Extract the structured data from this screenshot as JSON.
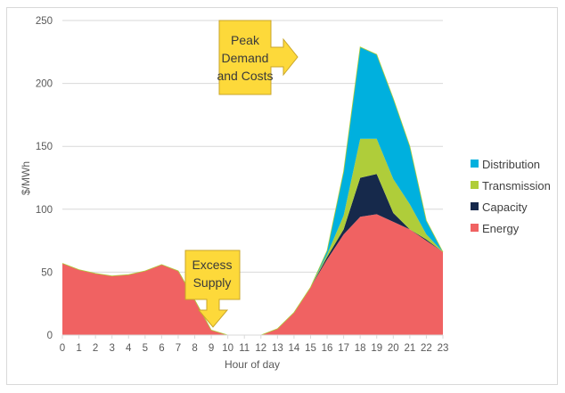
{
  "chart_data": {
    "type": "area",
    "stacked": true,
    "title": "",
    "xlabel": "Hour of day",
    "ylabel": "$/MWh",
    "ylim": [
      0,
      250
    ],
    "yticks": [
      0,
      50,
      100,
      150,
      200,
      250
    ],
    "grid": true,
    "legend_position": "right",
    "categories": [
      "0",
      "1",
      "2",
      "3",
      "4",
      "5",
      "6",
      "7",
      "8",
      "9",
      "10",
      "11",
      "12",
      "13",
      "14",
      "15",
      "16",
      "17",
      "18",
      "19",
      "20",
      "21",
      "22",
      "23"
    ],
    "series": [
      {
        "name": "Energy",
        "color": "#f06262",
        "values": [
          57,
          52,
          49,
          47,
          48,
          51,
          56,
          51,
          28,
          4,
          0,
          0,
          0,
          5,
          18,
          38,
          60,
          80,
          94,
          96,
          90,
          84,
          75,
          66
        ]
      },
      {
        "name": "Capacity",
        "color": "#16294b",
        "values": [
          0,
          0,
          0,
          0,
          0,
          0,
          0,
          0,
          0,
          0,
          0,
          0,
          0,
          0,
          0,
          0,
          2,
          4,
          31,
          32,
          7,
          0,
          1,
          0
        ]
      },
      {
        "name": "Transmission",
        "color": "#afcd3a",
        "values": [
          0,
          0,
          0,
          0,
          0,
          0,
          0,
          0,
          0,
          0,
          0,
          0,
          0,
          0,
          0,
          0,
          2,
          11,
          31,
          28,
          27,
          20,
          4,
          0
        ]
      },
      {
        "name": "Distribution",
        "color": "#00b0de",
        "values": [
          0,
          0,
          0,
          0,
          0,
          0,
          0,
          0,
          0,
          0,
          0,
          0,
          0,
          0,
          0,
          0,
          3,
          35,
          73,
          67,
          64,
          46,
          11,
          0
        ]
      }
    ],
    "annotations": [
      {
        "text": "Peak Demand and Costs",
        "shape": "right-arrow-callout",
        "points_to_hour": 18,
        "color": "#fdd93a"
      },
      {
        "text": "Excess Supply",
        "shape": "down-arrow-callout",
        "points_to_hour": 11.5,
        "color": "#fdd93a"
      }
    ]
  },
  "legend": {
    "items": [
      {
        "label": "Distribution",
        "color": "#00b0de"
      },
      {
        "label": "Transmission",
        "color": "#afcd3a"
      },
      {
        "label": "Capacity",
        "color": "#16294b"
      },
      {
        "label": "Energy",
        "color": "#f06262"
      }
    ]
  },
  "callouts": {
    "peak": {
      "lines": [
        "Peak",
        "Demand",
        "and Costs"
      ]
    },
    "excess": {
      "lines": [
        "Excess",
        "Supply"
      ]
    }
  }
}
